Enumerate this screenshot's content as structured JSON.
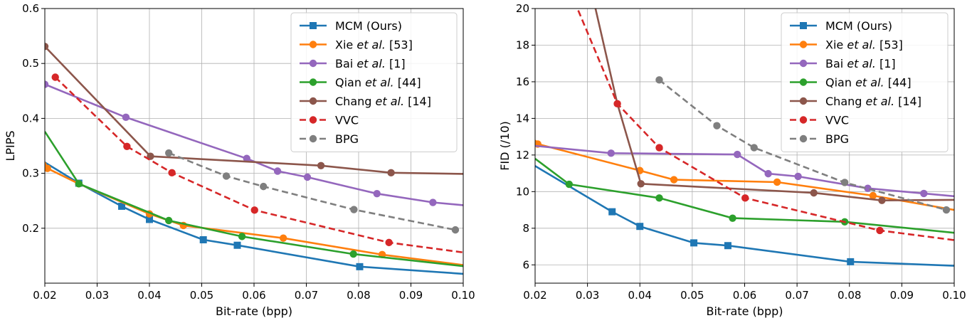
{
  "chart_data": [
    {
      "type": "line",
      "xlabel": "Bit-rate (bpp)",
      "ylabel": "LPIPS",
      "xlim": [
        0.02,
        0.1
      ],
      "ylim": [
        0.1,
        0.6
      ],
      "xticks": [
        "0.02",
        "0.03",
        "0.04",
        "0.05",
        "0.06",
        "0.07",
        "0.08",
        "0.09",
        "0.10"
      ],
      "xtick_values": [
        0.02,
        0.03,
        0.04,
        0.05,
        0.06,
        0.07,
        0.08,
        0.09,
        0.1
      ],
      "yticks": [
        "0.2",
        "0.3",
        "0.4",
        "0.5",
        "0.6"
      ],
      "ytick_values": [
        0.2,
        0.3,
        0.4,
        0.5,
        0.6
      ],
      "grid": true,
      "legend_position": "top-right",
      "series": [
        {
          "name": "MCM (Ours)",
          "legend_pre": "MCM (Ours)",
          "legend_em": "",
          "legend_post": "",
          "color": "#1f77b4",
          "marker": "square",
          "dashed": false,
          "points": [
            [
              0.02,
              0.32
            ],
            [
              0.0265,
              0.282
            ],
            [
              0.0347,
              0.24
            ],
            [
              0.04,
              0.216
            ],
            [
              0.0503,
              0.179
            ],
            [
              0.0568,
              0.169
            ],
            [
              0.0802,
              0.13
            ],
            [
              0.1,
              0.117
            ]
          ],
          "markers": [
            1,
            2,
            3,
            4,
            5,
            6
          ]
        },
        {
          "name": "Xie et al. [53]",
          "legend_pre": "Xie ",
          "legend_em": "et al.",
          "legend_post": " [53]",
          "color": "#ff7f0e",
          "marker": "circle",
          "dashed": false,
          "points": [
            [
              0.02,
              0.32
            ],
            [
              0.0205,
              0.309
            ],
            [
              0.0265,
              0.281
            ],
            [
              0.04,
              0.226
            ],
            [
              0.0465,
              0.205
            ],
            [
              0.0656,
              0.182
            ],
            [
              0.0845,
              0.152
            ],
            [
              0.1,
              0.133
            ]
          ],
          "markers": [
            1,
            2,
            3,
            4,
            5,
            6
          ]
        },
        {
          "name": "Bai et al. [1]",
          "legend_pre": "Bai ",
          "legend_em": "et al.",
          "legend_post": " [1]",
          "color": "#9467bd",
          "marker": "circle",
          "dashed": false,
          "points": [
            [
              0.02,
              0.462
            ],
            [
              0.0355,
              0.402
            ],
            [
              0.0586,
              0.327
            ],
            [
              0.0645,
              0.304
            ],
            [
              0.0702,
              0.293
            ],
            [
              0.0835,
              0.263
            ],
            [
              0.0942,
              0.247
            ],
            [
              0.1,
              0.242
            ]
          ],
          "markers": [
            0,
            1,
            2,
            3,
            4,
            5,
            6
          ]
        },
        {
          "name": "Qian et al. [44]",
          "legend_pre": "Qian ",
          "legend_em": "et al.",
          "legend_post": " [44]",
          "color": "#2ca02c",
          "marker": "circle",
          "dashed": false,
          "points": [
            [
              0.02,
              0.376
            ],
            [
              0.0265,
              0.281
            ],
            [
              0.0437,
              0.214
            ],
            [
              0.0577,
              0.185
            ],
            [
              0.079,
              0.153
            ],
            [
              0.1,
              0.131
            ]
          ],
          "markers": [
            1,
            2,
            3,
            4
          ]
        },
        {
          "name": "Chang et al. [14]",
          "legend_pre": "Chang ",
          "legend_em": "et al.",
          "legend_post": " [14]",
          "color": "#8c564b",
          "marker": "circle",
          "dashed": false,
          "points": [
            [
              0.02,
              0.531
            ],
            [
              0.0402,
              0.331
            ],
            [
              0.0728,
              0.314
            ],
            [
              0.0862,
              0.301
            ],
            [
              0.1,
              0.299
            ]
          ],
          "markers": [
            0,
            1,
            2,
            3
          ]
        },
        {
          "name": "VVC",
          "legend_pre": "VVC",
          "legend_em": "",
          "legend_post": "",
          "color": "#d62728",
          "marker": "circle",
          "dashed": true,
          "points": [
            [
              0.022,
              0.475
            ],
            [
              0.0357,
              0.349
            ],
            [
              0.0443,
              0.301
            ],
            [
              0.0601,
              0.233
            ],
            [
              0.0858,
              0.174
            ],
            [
              0.1,
              0.156
            ]
          ],
          "markers": [
            0,
            1,
            2,
            3,
            4
          ]
        },
        {
          "name": "BPG",
          "legend_pre": "BPG",
          "legend_em": "",
          "legend_post": "",
          "color": "#7f7f7f",
          "marker": "circle",
          "dashed": true,
          "points": [
            [
              0.0437,
              0.337
            ],
            [
              0.0547,
              0.295
            ],
            [
              0.0618,
              0.276
            ],
            [
              0.0791,
              0.234
            ],
            [
              0.0985,
              0.197
            ]
          ],
          "markers": [
            0,
            1,
            2,
            3,
            4
          ]
        }
      ]
    },
    {
      "type": "line",
      "xlabel": "Bit-rate (bpp)",
      "ylabel": "FID (/10)",
      "xlim": [
        0.02,
        0.1
      ],
      "ylim": [
        5,
        20
      ],
      "xticks": [
        "0.02",
        "0.03",
        "0.04",
        "0.05",
        "0.06",
        "0.07",
        "0.08",
        "0.09",
        "0.10"
      ],
      "xtick_values": [
        0.02,
        0.03,
        0.04,
        0.05,
        0.06,
        0.07,
        0.08,
        0.09,
        0.1
      ],
      "yticks": [
        "6",
        "8",
        "10",
        "12",
        "14",
        "16",
        "18",
        "20"
      ],
      "ytick_values": [
        6,
        8,
        10,
        12,
        14,
        16,
        18,
        20
      ],
      "grid": true,
      "legend_position": "top-right",
      "series": [
        {
          "name": "MCM (Ours)",
          "legend_pre": "MCM (Ours)",
          "legend_em": "",
          "legend_post": "",
          "color": "#1f77b4",
          "marker": "square",
          "dashed": false,
          "points": [
            [
              0.02,
              11.4
            ],
            [
              0.0347,
              8.9
            ],
            [
              0.04,
              8.1
            ],
            [
              0.0503,
              7.2
            ],
            [
              0.0568,
              7.05
            ],
            [
              0.0802,
              6.17
            ],
            [
              0.1,
              5.95
            ]
          ],
          "markers": [
            1,
            2,
            3,
            4,
            5
          ]
        },
        {
          "name": "Xie et al. [53]",
          "legend_pre": "Xie ",
          "legend_em": "et al.",
          "legend_post": " [53]",
          "color": "#ff7f0e",
          "marker": "circle",
          "dashed": false,
          "points": [
            [
              0.02,
              12.8
            ],
            [
              0.0205,
              12.6
            ],
            [
              0.04,
              11.15
            ],
            [
              0.0465,
              10.65
            ],
            [
              0.0662,
              10.52
            ],
            [
              0.0845,
              9.78
            ],
            [
              0.1,
              9.0
            ]
          ],
          "markers": [
            1,
            2,
            3,
            4,
            5
          ]
        },
        {
          "name": "Bai et al. [1]",
          "legend_pre": "Bai ",
          "legend_em": "et al.",
          "legend_post": " [1]",
          "color": "#9467bd",
          "marker": "circle",
          "dashed": false,
          "points": [
            [
              0.02,
              12.5
            ],
            [
              0.0345,
              12.1
            ],
            [
              0.0586,
              12.03
            ],
            [
              0.0645,
              10.98
            ],
            [
              0.0702,
              10.83
            ],
            [
              0.0835,
              10.18
            ],
            [
              0.0942,
              9.9
            ],
            [
              0.1,
              9.75
            ]
          ],
          "markers": [
            1,
            2,
            3,
            4,
            5,
            6
          ]
        },
        {
          "name": "Qian et al. [44]",
          "legend_pre": "Qian ",
          "legend_em": "et al.",
          "legend_post": " [44]",
          "color": "#2ca02c",
          "marker": "circle",
          "dashed": false,
          "points": [
            [
              0.02,
              11.8
            ],
            [
              0.0265,
              10.4
            ],
            [
              0.0437,
              9.65
            ],
            [
              0.0577,
              8.55
            ],
            [
              0.0791,
              8.35
            ],
            [
              0.1,
              7.75
            ]
          ],
          "markers": [
            1,
            2,
            3,
            4
          ]
        },
        {
          "name": "Chang et al. [14]",
          "legend_pre": "Chang ",
          "legend_em": "et al.",
          "legend_post": " [14]",
          "color": "#8c564b",
          "marker": "circle",
          "dashed": false,
          "points": [
            [
              0.0312,
              20.4
            ],
            [
              0.0357,
              14.8
            ],
            [
              0.0402,
              10.43
            ],
            [
              0.0732,
              9.93
            ],
            [
              0.0862,
              9.52
            ],
            [
              0.1,
              9.55
            ]
          ],
          "markers": [
            2,
            3,
            4
          ]
        },
        {
          "name": "VVC",
          "legend_pre": "VVC",
          "legend_em": "",
          "legend_post": "",
          "color": "#d62728",
          "marker": "circle",
          "dashed": true,
          "points": [
            [
              0.0275,
              20.4
            ],
            [
              0.0357,
              14.8
            ],
            [
              0.0437,
              12.4
            ],
            [
              0.0601,
              9.65
            ],
            [
              0.0858,
              7.88
            ],
            [
              0.1,
              7.35
            ]
          ],
          "markers": [
            1,
            2,
            3,
            4
          ]
        },
        {
          "name": "BPG",
          "legend_pre": "BPG",
          "legend_em": "",
          "legend_post": "",
          "color": "#7f7f7f",
          "marker": "circle",
          "dashed": true,
          "points": [
            [
              0.0437,
              16.1
            ],
            [
              0.0547,
              13.6
            ],
            [
              0.0618,
              12.4
            ],
            [
              0.0791,
              10.5
            ],
            [
              0.0985,
              9.0
            ]
          ],
          "markers": [
            0,
            1,
            2,
            3,
            4
          ]
        }
      ]
    }
  ]
}
